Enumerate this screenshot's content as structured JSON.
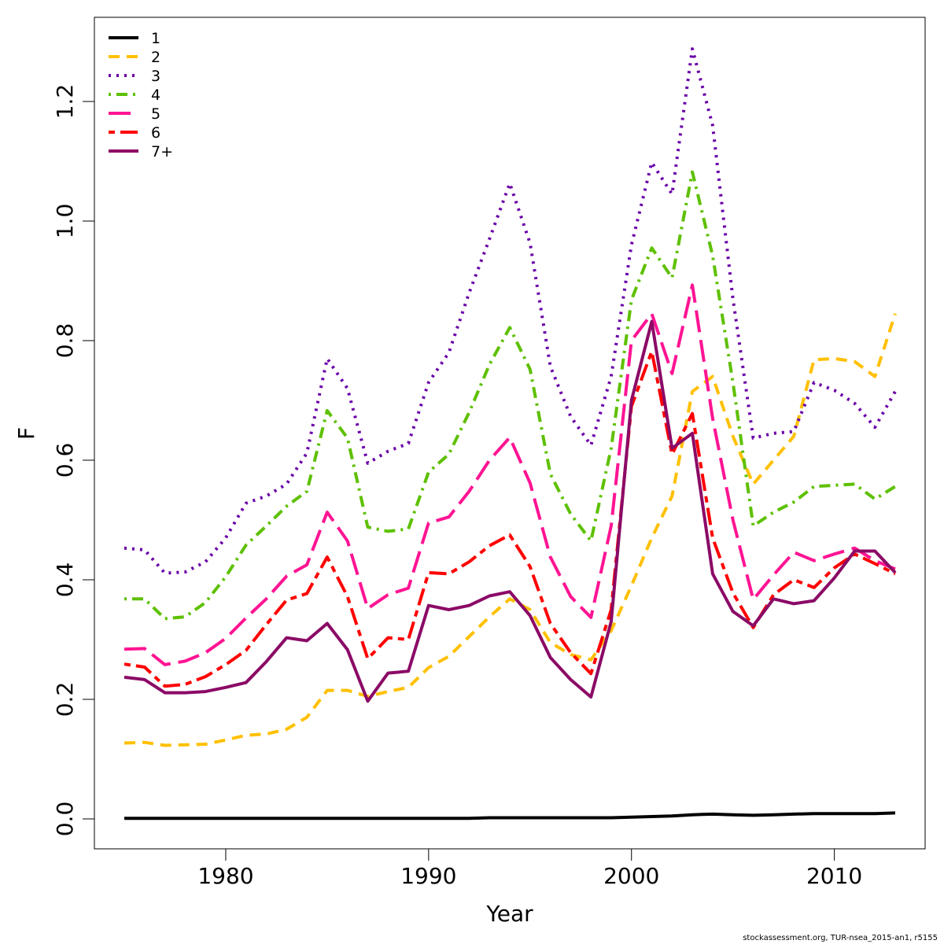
{
  "chart_data": {
    "type": "line",
    "xlabel": "Year",
    "ylabel": "F",
    "xlim": [
      1975,
      2013
    ],
    "ylim": [
      0.0,
      1.3
    ],
    "x_ticks": [
      1980,
      1990,
      2000,
      2010
    ],
    "y_ticks": [
      "0.0",
      "0.2",
      "0.4",
      "0.6",
      "0.8",
      "1.0",
      "1.2"
    ],
    "legend_position": "top-left",
    "grid": false,
    "x": [
      1975,
      1976,
      1977,
      1978,
      1979,
      1980,
      1981,
      1982,
      1983,
      1984,
      1985,
      1986,
      1987,
      1988,
      1989,
      1990,
      1991,
      1992,
      1993,
      1994,
      1995,
      1996,
      1997,
      1998,
      1999,
      2000,
      2001,
      2002,
      2003,
      2004,
      2005,
      2006,
      2007,
      2008,
      2009,
      2010,
      2011,
      2012,
      2013
    ],
    "series": [
      {
        "name": "1",
        "color": "#000000",
        "dash": "solid",
        "values": [
          0.001,
          0.001,
          0.001,
          0.001,
          0.001,
          0.001,
          0.001,
          0.001,
          0.001,
          0.001,
          0.001,
          0.001,
          0.001,
          0.001,
          0.001,
          0.001,
          0.001,
          0.001,
          0.002,
          0.002,
          0.002,
          0.002,
          0.002,
          0.002,
          0.002,
          0.003,
          0.004,
          0.005,
          0.007,
          0.008,
          0.007,
          0.006,
          0.007,
          0.008,
          0.009,
          0.009,
          0.009,
          0.009,
          0.01
        ]
      },
      {
        "name": "2",
        "color": "#ffc000",
        "dash": "dashed",
        "values": [
          0.127,
          0.128,
          0.123,
          0.124,
          0.125,
          0.132,
          0.14,
          0.142,
          0.15,
          0.17,
          0.215,
          0.215,
          0.205,
          0.213,
          0.22,
          0.253,
          0.272,
          0.305,
          0.338,
          0.368,
          0.35,
          0.295,
          0.275,
          0.266,
          0.315,
          0.39,
          0.47,
          0.54,
          0.715,
          0.74,
          0.64,
          0.56,
          0.6,
          0.64,
          0.768,
          0.77,
          0.765,
          0.74,
          0.845
        ]
      },
      {
        "name": "3",
        "color": "#6a00a8",
        "dash": "dotted",
        "values": [
          0.453,
          0.45,
          0.411,
          0.413,
          0.43,
          0.47,
          0.528,
          0.54,
          0.56,
          0.612,
          0.77,
          0.72,
          0.595,
          0.615,
          0.628,
          0.73,
          0.78,
          0.88,
          0.97,
          1.063,
          0.963,
          0.757,
          0.673,
          0.625,
          0.74,
          0.96,
          1.098,
          1.045,
          1.288,
          1.16,
          0.87,
          0.637,
          0.645,
          0.648,
          0.73,
          0.717,
          0.695,
          0.655,
          0.715
        ]
      },
      {
        "name": "4",
        "color": "#5ec000",
        "dash": "dotdash",
        "values": [
          0.368,
          0.368,
          0.335,
          0.338,
          0.362,
          0.405,
          0.458,
          0.49,
          0.523,
          0.548,
          0.683,
          0.637,
          0.488,
          0.481,
          0.485,
          0.58,
          0.61,
          0.68,
          0.76,
          0.822,
          0.752,
          0.577,
          0.51,
          0.465,
          0.62,
          0.868,
          0.955,
          0.905,
          1.082,
          0.942,
          0.73,
          0.49,
          0.513,
          0.53,
          0.556,
          0.558,
          0.56,
          0.535,
          0.556
        ]
      },
      {
        "name": "5",
        "color": "#ff1493",
        "dash": "longdash",
        "values": [
          0.284,
          0.285,
          0.258,
          0.264,
          0.278,
          0.302,
          0.336,
          0.368,
          0.406,
          0.425,
          0.513,
          0.465,
          0.352,
          0.375,
          0.386,
          0.495,
          0.505,
          0.548,
          0.6,
          0.638,
          0.562,
          0.438,
          0.372,
          0.337,
          0.49,
          0.8,
          0.845,
          0.745,
          0.893,
          0.67,
          0.5,
          0.367,
          0.408,
          0.446,
          0.432,
          0.443,
          0.453,
          0.432,
          0.418
        ]
      },
      {
        "name": "6",
        "color": "#ff0000",
        "dash": "twodash",
        "values": [
          0.259,
          0.254,
          0.222,
          0.225,
          0.238,
          0.258,
          0.282,
          0.325,
          0.366,
          0.377,
          0.438,
          0.372,
          0.268,
          0.303,
          0.3,
          0.412,
          0.41,
          0.43,
          0.457,
          0.475,
          0.422,
          0.327,
          0.278,
          0.243,
          0.35,
          0.69,
          0.782,
          0.61,
          0.678,
          0.47,
          0.378,
          0.32,
          0.375,
          0.4,
          0.387,
          0.42,
          0.443,
          0.427,
          0.41
        ]
      },
      {
        "name": "7+",
        "color": "#8b0a66",
        "dash": "solid",
        "values": [
          0.237,
          0.233,
          0.211,
          0.211,
          0.213,
          0.22,
          0.228,
          0.263,
          0.303,
          0.298,
          0.327,
          0.283,
          0.197,
          0.244,
          0.247,
          0.357,
          0.35,
          0.357,
          0.373,
          0.38,
          0.34,
          0.27,
          0.233,
          0.204,
          0.33,
          0.7,
          0.832,
          0.62,
          0.645,
          0.41,
          0.347,
          0.323,
          0.368,
          0.36,
          0.365,
          0.403,
          0.448,
          0.448,
          0.412
        ]
      }
    ]
  },
  "footnote": "stockassessment.org, TUR-nsea_2015-an1, r5155"
}
